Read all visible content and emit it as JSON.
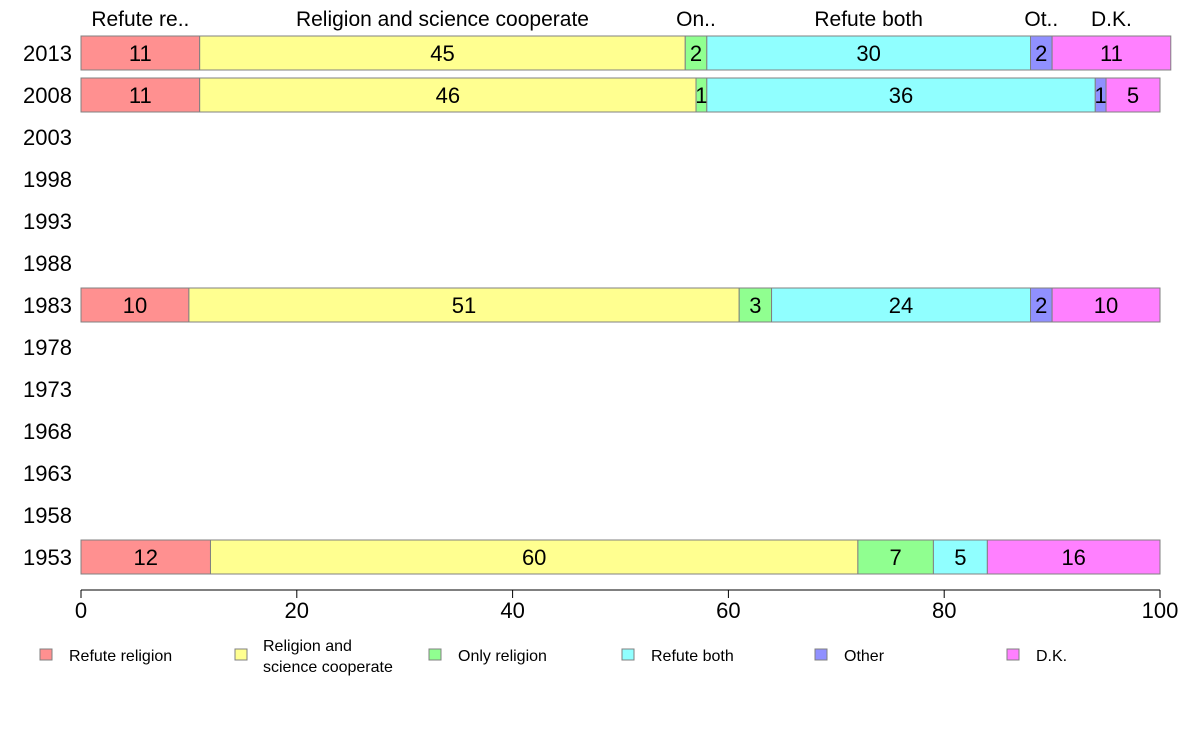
{
  "chart_data": {
    "type": "bar",
    "orientation": "horizontal",
    "stacked": true,
    "title": "",
    "xlabel": "",
    "ylabel": "",
    "xlim": [
      0,
      100
    ],
    "x_ticks": [
      "0",
      "20",
      "40",
      "60",
      "80",
      "100"
    ],
    "categories": [
      "2013",
      "2008",
      "2003",
      "1998",
      "1993",
      "1988",
      "1983",
      "1978",
      "1973",
      "1968",
      "1963",
      "1958",
      "1953"
    ],
    "column_headers": [
      "Refute re..",
      "Religion and science cooperate",
      "On..",
      "Refute both",
      "Ot..",
      "D.K."
    ],
    "series": [
      {
        "name": "Refute religion",
        "color": "#ff9090",
        "values": [
          11,
          11,
          null,
          null,
          null,
          null,
          10,
          null,
          null,
          null,
          null,
          null,
          12
        ]
      },
      {
        "name": "Religion and science cooperate",
        "legend_lines": [
          "Religion and",
          "science cooperate"
        ],
        "color": "#ffff90",
        "values": [
          45,
          46,
          null,
          null,
          null,
          null,
          51,
          null,
          null,
          null,
          null,
          null,
          60
        ]
      },
      {
        "name": "Only religion",
        "color": "#90ff90",
        "values": [
          2,
          1,
          null,
          null,
          null,
          null,
          3,
          null,
          null,
          null,
          null,
          null,
          7
        ]
      },
      {
        "name": "Refute both",
        "color": "#90ffff",
        "values": [
          30,
          36,
          null,
          null,
          null,
          null,
          24,
          null,
          null,
          null,
          null,
          null,
          5
        ]
      },
      {
        "name": "Other",
        "color": "#9090ff",
        "values": [
          2,
          1,
          null,
          null,
          null,
          null,
          2,
          null,
          null,
          null,
          null,
          null,
          0
        ]
      },
      {
        "name": "D.K.",
        "color": "#ff80ff",
        "values": [
          11,
          5,
          null,
          null,
          null,
          null,
          10,
          null,
          null,
          null,
          null,
          null,
          16
        ]
      }
    ],
    "legend_position": "bottom",
    "grid": false
  }
}
